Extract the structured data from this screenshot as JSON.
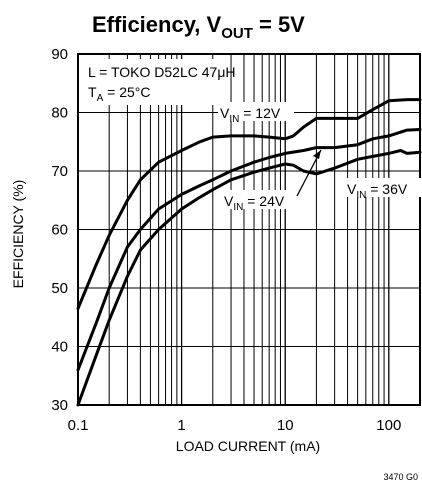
{
  "chart_data": {
    "type": "line",
    "title": {
      "prefix": "Efficiency, V",
      "sub": "OUT",
      "suffix": " = 5V"
    },
    "xlabel": "LOAD CURRENT (mA)",
    "ylabel": "EFFICIENCY (%)",
    "xscale": "log",
    "xlim": [
      0.1,
      200
    ],
    "ylim": [
      30,
      90
    ],
    "x_ticks": [
      {
        "value": 0.1,
        "label": "0.1"
      },
      {
        "value": 1,
        "label": "1"
      },
      {
        "value": 10,
        "label": "10"
      },
      {
        "value": 100,
        "label": "100"
      }
    ],
    "y_ticks": [
      {
        "value": 30,
        "label": "30"
      },
      {
        "value": 40,
        "label": "40"
      },
      {
        "value": 50,
        "label": "50"
      },
      {
        "value": 60,
        "label": "60"
      },
      {
        "value": 70,
        "label": "70"
      },
      {
        "value": 80,
        "label": "80"
      },
      {
        "value": 90,
        "label": "90"
      }
    ],
    "grid": true,
    "annotations": {
      "inductor": "L = TOKO D52LC 47μH",
      "temp_main": "T",
      "temp_sub": "A",
      "temp_rest": " = 25°C"
    },
    "curve_labels": [
      {
        "series": 0,
        "main": "V",
        "sub": "IN",
        "rest": " = 12V"
      },
      {
        "series": 1,
        "main": "V",
        "sub": "IN",
        "rest": " = 24V"
      },
      {
        "series": 2,
        "main": "V",
        "sub": "IN",
        "rest": " = 36V"
      }
    ],
    "series": [
      {
        "points": [
          [
            0.1,
            46.5
          ],
          [
            0.15,
            54
          ],
          [
            0.2,
            59
          ],
          [
            0.3,
            65
          ],
          [
            0.4,
            68.5
          ],
          [
            0.6,
            71.5
          ],
          [
            1,
            73.5
          ],
          [
            1.5,
            75
          ],
          [
            2,
            75.8
          ],
          [
            3,
            76
          ],
          [
            5,
            76
          ],
          [
            7,
            75.8
          ],
          [
            10,
            75.5
          ],
          [
            12,
            76
          ],
          [
            15,
            77.5
          ],
          [
            20,
            79
          ],
          [
            30,
            79
          ],
          [
            50,
            79
          ],
          [
            70,
            80.5
          ],
          [
            100,
            82
          ],
          [
            150,
            82.2
          ],
          [
            200,
            82.2
          ]
        ]
      },
      {
        "points": [
          [
            0.1,
            36
          ],
          [
            0.15,
            44
          ],
          [
            0.2,
            50
          ],
          [
            0.3,
            57
          ],
          [
            0.4,
            60
          ],
          [
            0.6,
            63.5
          ],
          [
            1,
            66
          ],
          [
            1.5,
            67.5
          ],
          [
            2,
            68.5
          ],
          [
            3,
            70
          ],
          [
            5,
            71.5
          ],
          [
            7,
            72.3
          ],
          [
            10,
            73
          ],
          [
            15,
            73.5
          ],
          [
            20,
            74
          ],
          [
            30,
            74
          ],
          [
            50,
            74.5
          ],
          [
            70,
            75.5
          ],
          [
            100,
            76
          ],
          [
            150,
            77
          ],
          [
            200,
            77.1
          ]
        ]
      },
      {
        "points": [
          [
            0.1,
            30
          ],
          [
            0.15,
            38.5
          ],
          [
            0.2,
            44.5
          ],
          [
            0.3,
            52
          ],
          [
            0.4,
            56.5
          ],
          [
            0.6,
            60
          ],
          [
            1,
            63.5
          ],
          [
            1.5,
            65.5
          ],
          [
            2,
            66.8
          ],
          [
            3,
            68.5
          ],
          [
            5,
            69.8
          ],
          [
            7,
            70.5
          ],
          [
            10,
            71.2
          ],
          [
            12,
            71
          ],
          [
            15,
            70
          ],
          [
            20,
            69.5
          ],
          [
            30,
            70.5
          ],
          [
            50,
            72
          ],
          [
            70,
            72.5
          ],
          [
            100,
            73
          ],
          [
            130,
            73.5
          ],
          [
            150,
            73
          ],
          [
            200,
            73.2
          ]
        ]
      }
    ],
    "figure_code": "3470 G0"
  }
}
